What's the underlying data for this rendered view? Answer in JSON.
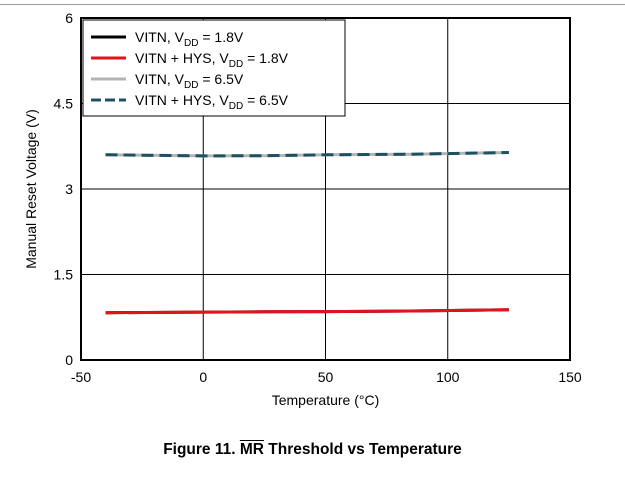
{
  "chart_data": {
    "type": "line",
    "xlabel": "Temperature (°C)",
    "ylabel": "Manual Reset Voltage (V)",
    "xlim": [
      -50,
      150
    ],
    "ylim": [
      0,
      6
    ],
    "xticks": [
      -50,
      0,
      50,
      100,
      150
    ],
    "yticks": [
      0,
      1.5,
      3,
      4.5,
      6
    ],
    "xtick_labels": [
      "-50",
      "0",
      "50",
      "100",
      "150"
    ],
    "ytick_labels": [
      "0",
      "1.5",
      "3",
      "4.5",
      "6"
    ],
    "grid": true,
    "legend_position": "top-left",
    "series": [
      {
        "legend": {
          "prefix": "VITN, V",
          "sub": "DD",
          "suffix": " = 1.8V"
        },
        "color": "#000000",
        "style": "solid",
        "x": [
          -40,
          0,
          25,
          50,
          85,
          125
        ],
        "y": [
          0.83,
          0.84,
          0.845,
          0.85,
          0.86,
          0.88
        ]
      },
      {
        "legend": {
          "prefix": "VITN + HYS, V",
          "sub": "DD",
          "suffix": " = 1.8V"
        },
        "color": "#e0141b",
        "style": "solid",
        "x": [
          -40,
          0,
          25,
          50,
          85,
          125
        ],
        "y": [
          0.83,
          0.84,
          0.845,
          0.85,
          0.86,
          0.88
        ]
      },
      {
        "legend": {
          "prefix": "VITN, V",
          "sub": "DD",
          "suffix": " = 6.5V"
        },
        "color": "#b4b4b4",
        "style": "solid",
        "x": [
          -40,
          0,
          25,
          50,
          85,
          125
        ],
        "y": [
          3.6,
          3.58,
          3.585,
          3.6,
          3.61,
          3.64
        ]
      },
      {
        "legend": {
          "prefix": "VITN + HYS, V",
          "sub": "DD",
          "suffix": " = 6.5V"
        },
        "color": "#1e5064",
        "style": "dashed",
        "x": [
          -40,
          0,
          25,
          50,
          85,
          125
        ],
        "y": [
          3.6,
          3.58,
          3.585,
          3.6,
          3.61,
          3.64
        ]
      }
    ]
  },
  "caption": {
    "prefix": "Figure 11. ",
    "overlined": "MR",
    "suffix": " Threshold vs Temperature"
  }
}
